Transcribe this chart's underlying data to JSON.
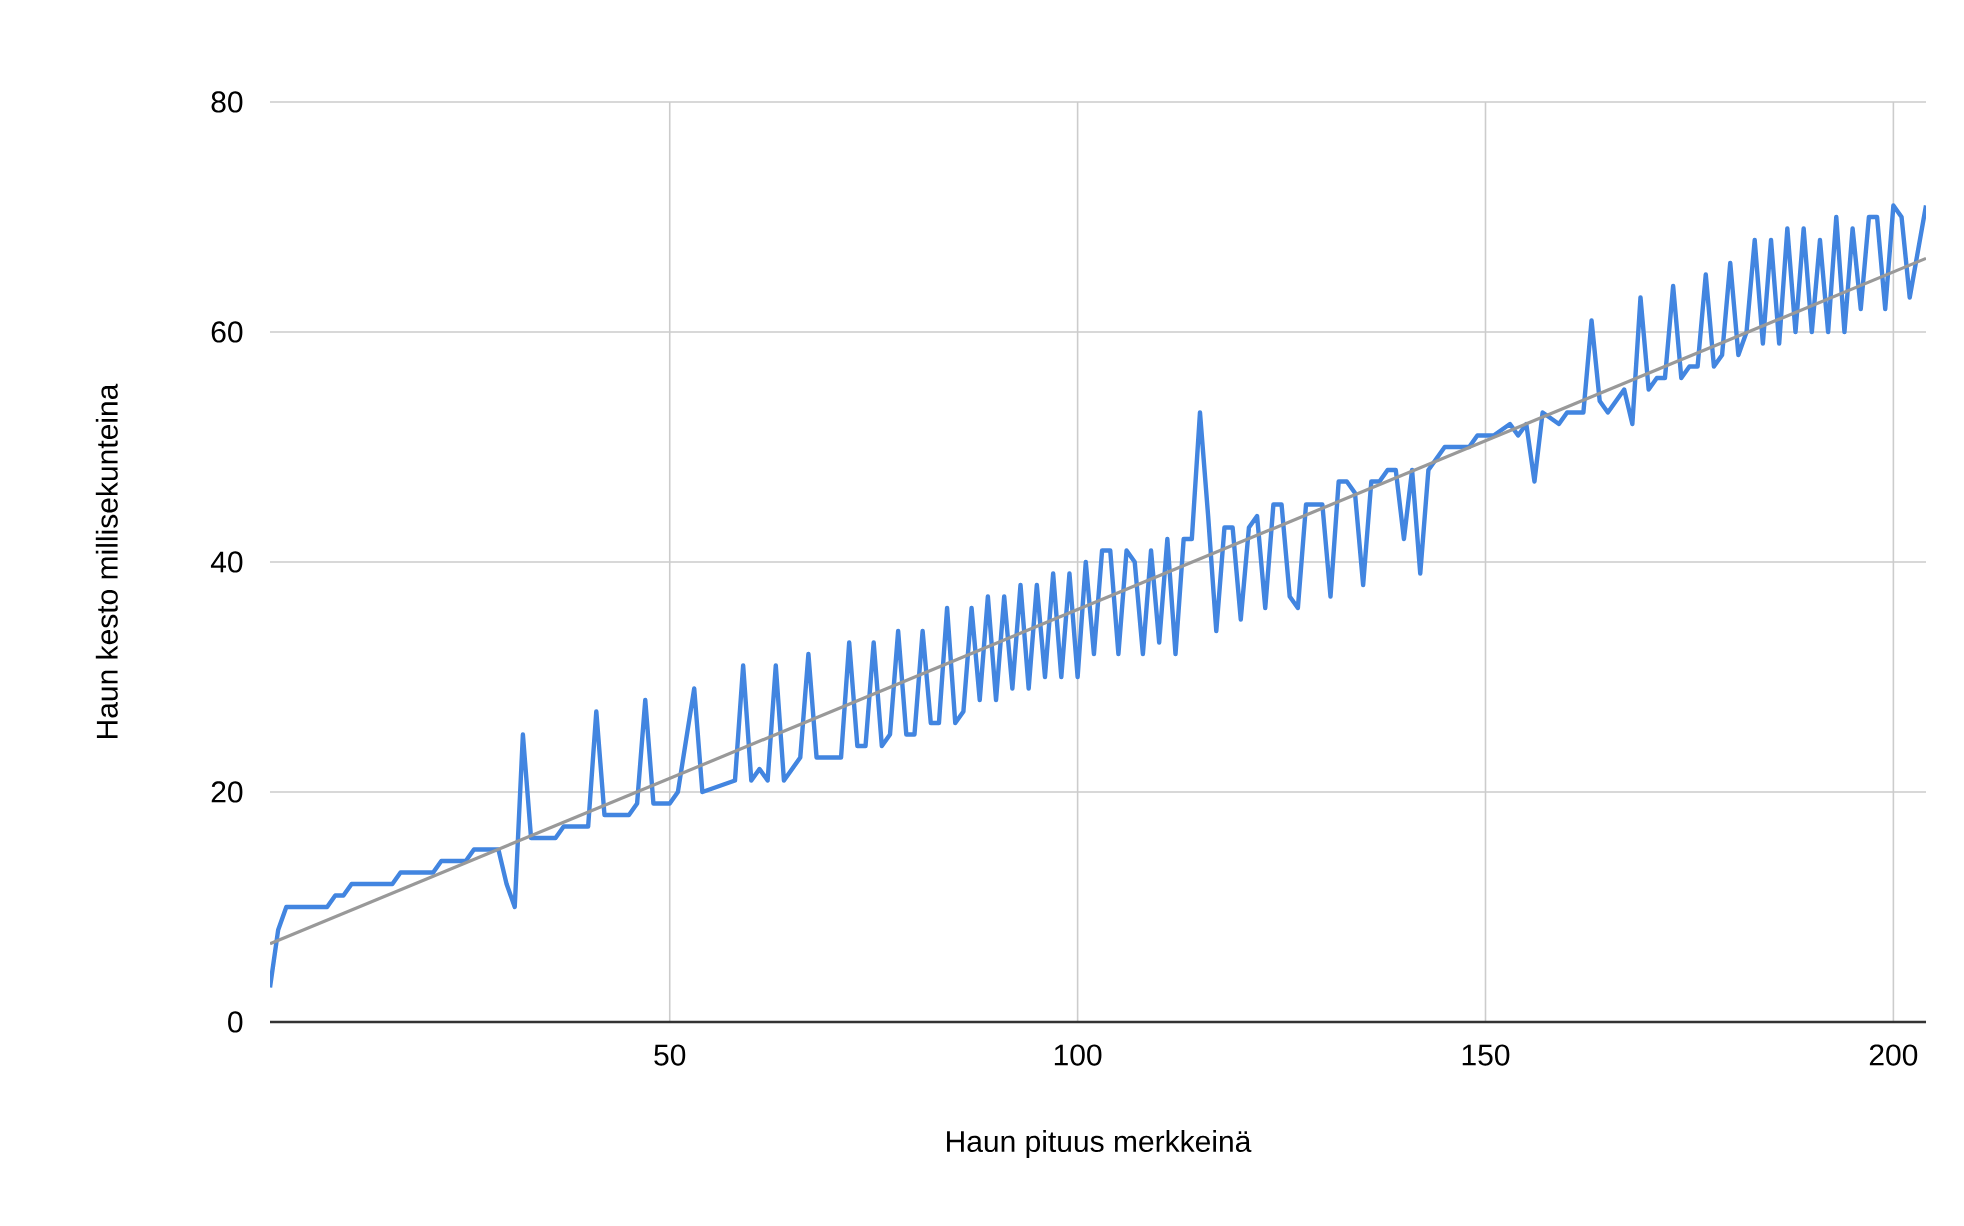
{
  "chart_data": {
    "type": "line",
    "xlabel": "Haun pituus merkkeinä",
    "ylabel": "Haun kesto millisekunteina",
    "xlim": [
      1,
      204
    ],
    "ylim": [
      0,
      80
    ],
    "xticks": [
      50,
      100,
      150,
      200
    ],
    "yticks": [
      0,
      20,
      40,
      60,
      80
    ],
    "grid": true,
    "series": [
      {
        "color": "#4285e0",
        "x": [
          1,
          2,
          3,
          4,
          8,
          9,
          10,
          11,
          16,
          17,
          21,
          22,
          25,
          26,
          29,
          30,
          31,
          32,
          33,
          36,
          37,
          40,
          41,
          42,
          45,
          46,
          47,
          48,
          50,
          51,
          53,
          54,
          58,
          59,
          60,
          61,
          62,
          63,
          64,
          66,
          67,
          68,
          71,
          72,
          73,
          74,
          75,
          76,
          77,
          78,
          79,
          80,
          81,
          82,
          83,
          84,
          85,
          86,
          87,
          88,
          89,
          90,
          91,
          92,
          93,
          94,
          95,
          96,
          97,
          98,
          99,
          100,
          101,
          102,
          103,
          104,
          105,
          106,
          107,
          108,
          109,
          110,
          111,
          112,
          113,
          114,
          115,
          116,
          117,
          118,
          119,
          120,
          121,
          122,
          123,
          124,
          125,
          126,
          127,
          128,
          129,
          130,
          131,
          132,
          133,
          134,
          135,
          136,
          137,
          138,
          139,
          140,
          141,
          142,
          143,
          144,
          145,
          146,
          148,
          149,
          150,
          151,
          153,
          154,
          155,
          156,
          157,
          159,
          160,
          162,
          163,
          164,
          165,
          167,
          168,
          169,
          170,
          171,
          172,
          173,
          174,
          175,
          176,
          177,
          178,
          179,
          180,
          181,
          182,
          183,
          184,
          185,
          186,
          187,
          188,
          189,
          190,
          191,
          192,
          193,
          194,
          195,
          196,
          197,
          198,
          199,
          200,
          201,
          202,
          204
        ],
        "values": [
          3,
          8,
          10,
          10,
          10,
          11,
          11,
          12,
          12,
          13,
          13,
          14,
          14,
          15,
          15,
          12,
          10,
          25,
          16,
          16,
          17,
          17,
          27,
          18,
          18,
          19,
          28,
          19,
          19,
          20,
          29,
          20,
          21,
          31,
          21,
          22,
          21,
          31,
          21,
          23,
          32,
          23,
          23,
          33,
          24,
          24,
          33,
          24,
          25,
          34,
          25,
          25,
          34,
          26,
          26,
          36,
          26,
          27,
          36,
          28,
          37,
          28,
          37,
          29,
          38,
          29,
          38,
          30,
          39,
          30,
          39,
          30,
          40,
          32,
          41,
          41,
          32,
          41,
          40,
          32,
          41,
          33,
          42,
          32,
          42,
          42,
          53,
          44,
          34,
          43,
          43,
          35,
          43,
          44,
          36,
          45,
          45,
          37,
          36,
          45,
          45,
          45,
          37,
          47,
          47,
          46,
          38,
          47,
          47,
          48,
          48,
          42,
          48,
          39,
          48,
          49,
          50,
          50,
          50,
          51,
          51,
          51,
          52,
          51,
          52,
          47,
          53,
          52,
          53,
          53,
          61,
          54,
          53,
          55,
          52,
          63,
          55,
          56,
          56,
          64,
          56,
          57,
          57,
          65,
          57,
          58,
          66,
          58,
          60,
          68,
          59,
          68,
          59,
          69,
          60,
          69,
          60,
          68,
          60,
          70,
          60,
          69,
          62,
          70,
          70,
          62,
          71,
          70,
          63,
          71
        ]
      },
      {
        "type": "line",
        "color": "#999999",
        "x": [
          1,
          204
        ],
        "values": [
          6.8,
          66.4
        ]
      }
    ]
  }
}
